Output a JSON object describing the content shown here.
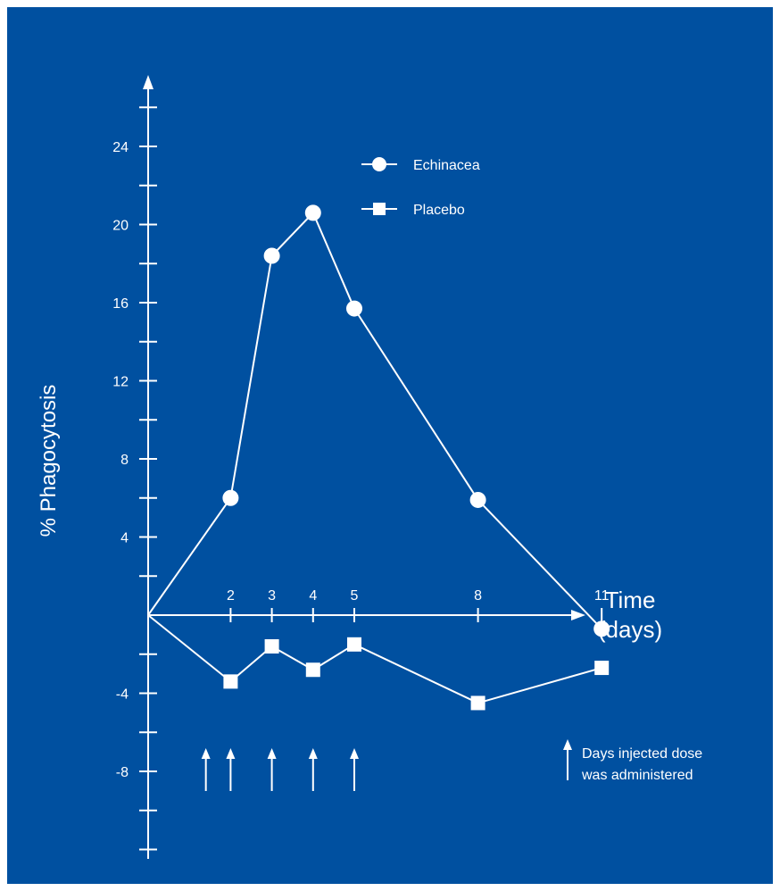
{
  "colors": {
    "background": "#0050a0",
    "foreground": "#ffffff"
  },
  "chart_data": {
    "type": "line",
    "ylabel": "% Phagocytosis",
    "xlabel_line1": "Time",
    "xlabel_line2": "(days)",
    "ylim": [
      -12,
      28
    ],
    "y_ticks": [
      24,
      20,
      16,
      12,
      8,
      4,
      -4,
      -8
    ],
    "x_ticks": [
      2,
      3,
      4,
      5,
      8,
      11
    ],
    "series": [
      {
        "name": "Echinacea",
        "marker": "circle",
        "points": [
          [
            0,
            0
          ],
          [
            2,
            6
          ],
          [
            3,
            18.4
          ],
          [
            4,
            20.6
          ],
          [
            5,
            15.7
          ],
          [
            8,
            5.9
          ],
          [
            11,
            -0.7
          ]
        ]
      },
      {
        "name": "Placebo",
        "marker": "square",
        "points": [
          [
            0,
            0
          ],
          [
            2,
            -3.4
          ],
          [
            3,
            -1.6
          ],
          [
            4,
            -2.8
          ],
          [
            5,
            -1.5
          ],
          [
            8,
            -4.5
          ],
          [
            11,
            -2.7
          ]
        ]
      }
    ],
    "dose_days": [
      1.4,
      2,
      3,
      4,
      5
    ],
    "dose_note_line1": "Days injected dose",
    "dose_note_line2": "was administered"
  }
}
